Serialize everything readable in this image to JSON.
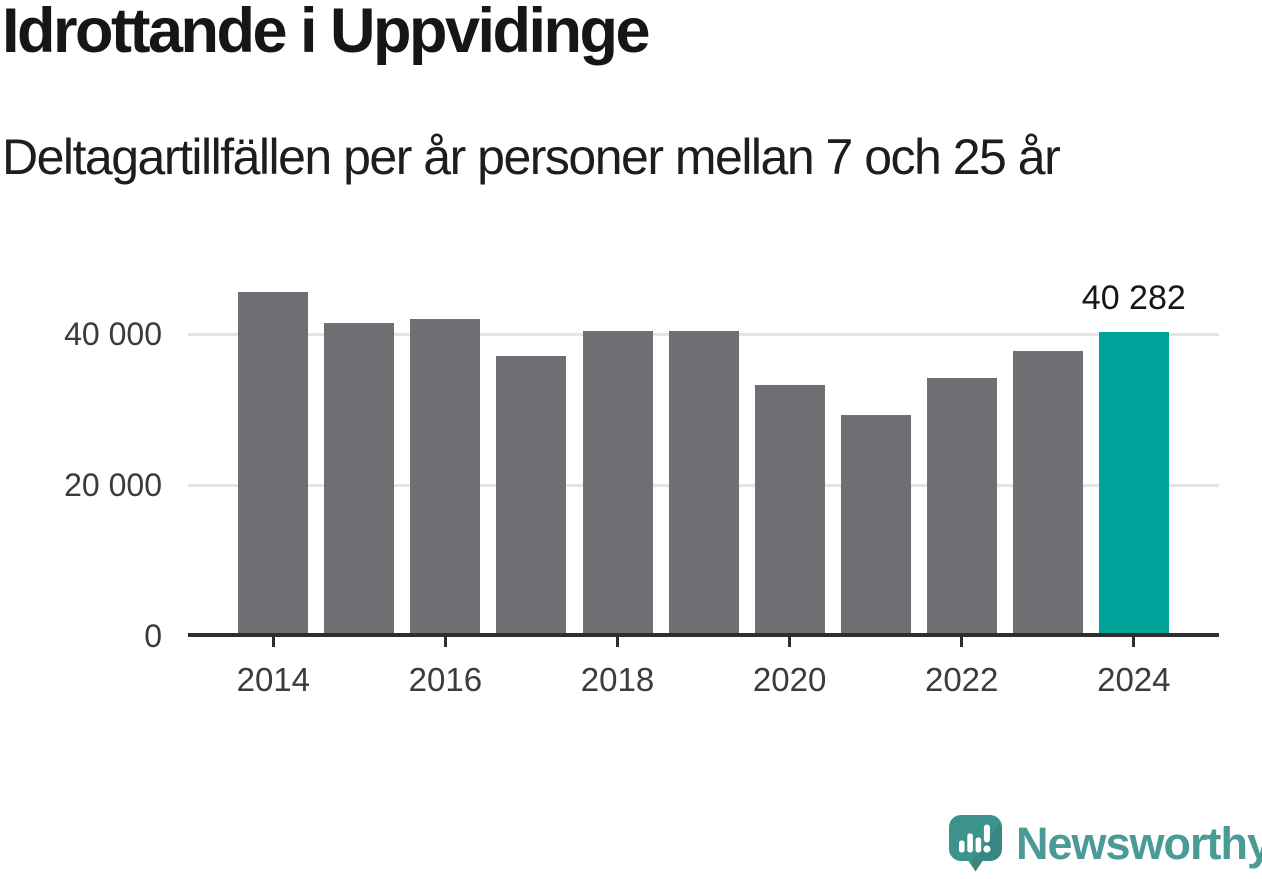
{
  "header": {
    "title": "Idrottande i Uppvidinge",
    "subtitle": "Deltagartillfällen per år personer mellan 7 och 25 år"
  },
  "chart_data": {
    "type": "bar",
    "title": "Idrottande i Uppvidinge",
    "subtitle": "Deltagartillfällen per år personer mellan 7 och 25 år",
    "categories": [
      "2014",
      "2015",
      "2016",
      "2017",
      "2018",
      "2019",
      "2020",
      "2021",
      "2022",
      "2023",
      "2024"
    ],
    "values": [
      45500,
      41500,
      42000,
      37100,
      40400,
      40400,
      33200,
      29300,
      34200,
      37700,
      40282
    ],
    "highlight_index": 10,
    "highlight_value_label": "40 282",
    "bar_color": "#6f6e73",
    "highlight_color": "#00a39a",
    "xlabel": "",
    "ylabel": "",
    "ylim": [
      0,
      46000
    ],
    "y_ticks": [
      {
        "value": 0,
        "label": "0"
      },
      {
        "value": 20000,
        "label": "20 000"
      },
      {
        "value": 40000,
        "label": "40 000"
      }
    ],
    "x_tick_labels": [
      "2014",
      "2016",
      "2018",
      "2020",
      "2022",
      "2024"
    ],
    "grid": "horizontal-only",
    "legend": "none"
  },
  "footer": {
    "logo_text": "Newsworthy",
    "logo_color": "#4a9a95",
    "logo_icon": "newsworthy-speech-bubble-chart-icon"
  },
  "colors": {
    "background": "#ffffff",
    "axis": "#2e2e2e",
    "gridline": "#e4e4e4",
    "text": "#161616",
    "tick_text": "#3b3b3b"
  }
}
